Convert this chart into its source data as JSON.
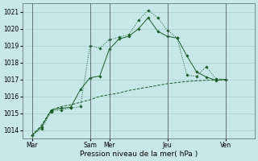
{
  "xlabel": "Pression niveau de la mer( hPa )",
  "bg_color": "#c8e8e8",
  "grid_color": "#a8cccc",
  "line_color": "#1a5c28",
  "ylim": [
    1013.5,
    1021.5
  ],
  "yticks": [
    1014,
    1015,
    1016,
    1017,
    1018,
    1019,
    1020,
    1021
  ],
  "xlim": [
    0,
    24
  ],
  "x_tick_positions": [
    1,
    7,
    9,
    15,
    21
  ],
  "x_tick_labels": [
    "Mar",
    "Sam",
    "Mer",
    "Jeu",
    "Ven"
  ],
  "vline_positions": [
    1,
    7,
    9,
    15,
    21
  ],
  "line1_x": [
    1,
    2,
    3,
    4,
    5,
    6,
    7,
    8,
    9,
    10,
    11,
    12,
    13,
    14,
    15,
    16,
    17,
    18,
    19,
    20,
    21
  ],
  "line1_y": [
    1013.7,
    1014.1,
    1015.1,
    1015.2,
    1015.3,
    1015.4,
    1019.0,
    1018.85,
    1019.35,
    1019.5,
    1019.65,
    1020.5,
    1021.1,
    1020.65,
    1019.9,
    1019.45,
    1017.25,
    1017.2,
    1017.75,
    1017.05,
    1017.0
  ],
  "line2_x": [
    1,
    2,
    3,
    4,
    5,
    6,
    7,
    8,
    9,
    10,
    11,
    12,
    13,
    14,
    15,
    16,
    17,
    18,
    19,
    20,
    21
  ],
  "line2_y": [
    1013.7,
    1014.2,
    1015.2,
    1015.3,
    1015.35,
    1016.4,
    1017.1,
    1017.2,
    1018.8,
    1019.4,
    1019.55,
    1020.0,
    1020.65,
    1019.85,
    1019.55,
    1019.45,
    1018.4,
    1017.45,
    1017.15,
    1016.95,
    1017.0
  ],
  "line3_x": [
    1,
    2,
    3,
    4,
    5,
    6,
    7,
    8,
    9,
    10,
    11,
    12,
    13,
    14,
    15,
    16,
    17,
    18,
    19,
    20,
    21
  ],
  "line3_y": [
    1013.7,
    1014.3,
    1015.2,
    1015.4,
    1015.5,
    1015.65,
    1015.8,
    1016.0,
    1016.1,
    1016.2,
    1016.35,
    1016.45,
    1016.55,
    1016.65,
    1016.75,
    1016.82,
    1016.88,
    1016.92,
    1016.95,
    1016.97,
    1017.0
  ]
}
